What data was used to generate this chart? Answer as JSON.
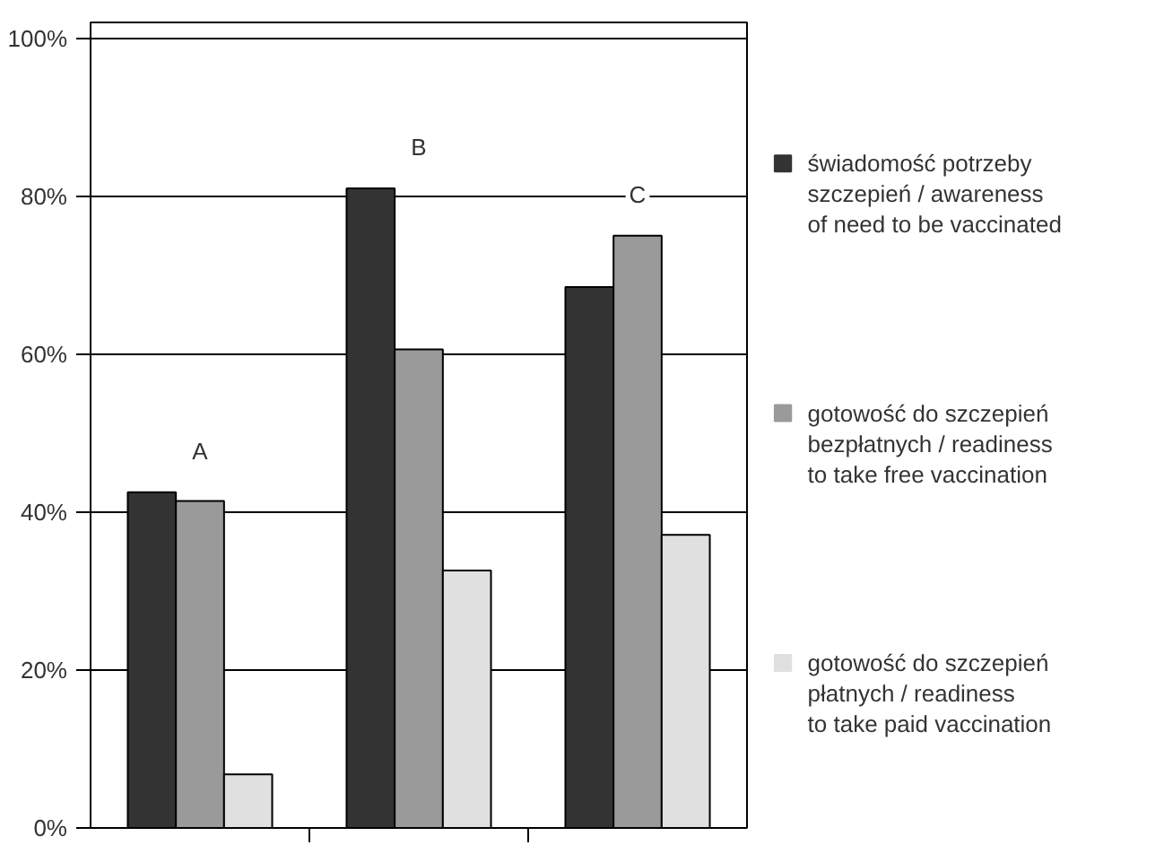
{
  "chart_data": {
    "type": "bar",
    "categories": [
      "A",
      "B",
      "C"
    ],
    "series": [
      {
        "name": "świadomość potrzeby\nszczepień / awareness\nof need to be vaccinated",
        "color": "#333333",
        "values": [
          42.5,
          81.0,
          68.5
        ]
      },
      {
        "name": "gotowość do szczepień\nbezpłatnych / readiness\nto take free vaccination",
        "color": "#9a9a9a",
        "values": [
          41.4,
          60.6,
          75.0
        ]
      },
      {
        "name": "gotowość do szczepień\npłatnych / readiness\nto take paid vaccination",
        "color": "#e0e0e0",
        "values": [
          6.8,
          32.6,
          37.1
        ]
      }
    ],
    "ylim": [
      0,
      102
    ],
    "yticks": [
      {
        "value": 0,
        "label": "0%"
      },
      {
        "value": 20,
        "label": "20%"
      },
      {
        "value": 40,
        "label": "40%"
      },
      {
        "value": 60,
        "label": "60%"
      },
      {
        "value": 80,
        "label": "80%"
      },
      {
        "value": 100,
        "label": "100%"
      }
    ],
    "grid": "y",
    "legend": "right"
  }
}
